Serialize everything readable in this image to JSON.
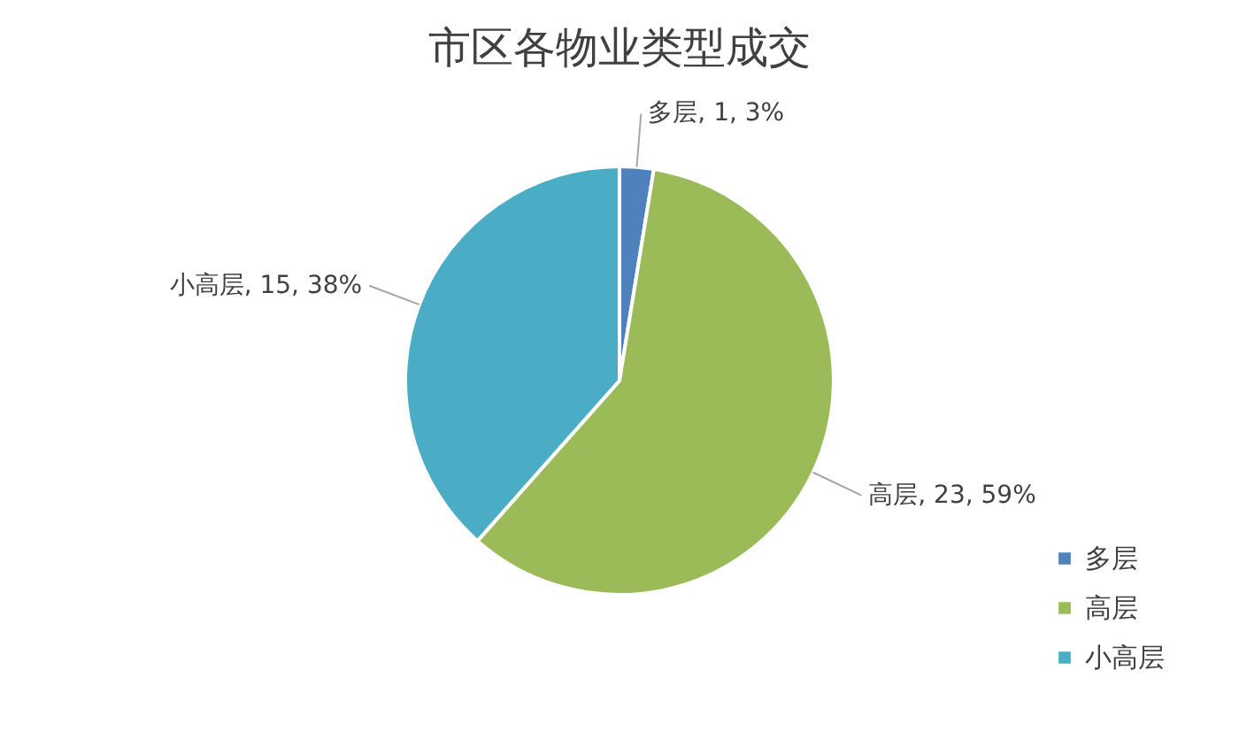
{
  "chart_data": {
    "type": "pie",
    "title": "市区各物业类型成交",
    "categories": [
      "多层",
      "高层",
      "小高层"
    ],
    "values": [
      1,
      23,
      15
    ],
    "colors": [
      "#4f81bd",
      "#9bbb59",
      "#4bacc6"
    ],
    "value_labels": [
      "多层, 1, 3%",
      "高层, 23, 59%",
      "小高层, 15, 38%"
    ],
    "legend": "bottom right"
  }
}
